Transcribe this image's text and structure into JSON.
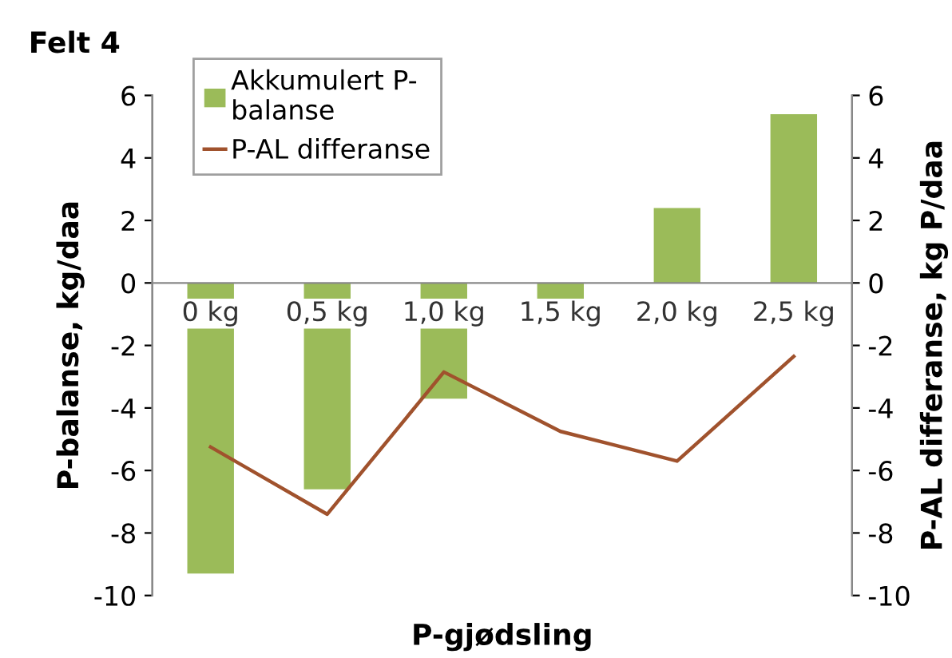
{
  "chart_data": {
    "type": "bar",
    "title": "Felt 4",
    "xlabel": "P-gjødsling",
    "ylabel": "P-balanse, kg/daa",
    "y2label": "P-AL differanse, kg P/daa",
    "categories": [
      "0 kg",
      "0,5 kg",
      "1,0 kg",
      "1,5 kg",
      "2,0 kg",
      "2,5 kg"
    ],
    "series": [
      {
        "name": "Akkumulert P-\nbalanse",
        "color": "#9bbb59",
        "values": [
          -9.3,
          -6.6,
          -3.7,
          -0.6,
          2.4,
          5.4
        ]
      },
      {
        "name": "P-AL differanse",
        "type": "line",
        "axis": "y2",
        "color": "#a0522d",
        "values": [
          -5.25,
          -7.4,
          -2.85,
          -4.75,
          -5.7,
          -2.35
        ]
      }
    ],
    "ylim": [
      -10,
      6
    ],
    "yticks": [
      -10,
      -8,
      -6,
      -4,
      -2,
      0,
      2,
      4,
      6
    ],
    "y2lim": [
      -10,
      6
    ],
    "y2ticks": [
      -10,
      -8,
      -6,
      -4,
      -2,
      0,
      2,
      4,
      6
    ],
    "grid": false,
    "legend": "top left",
    "marker": "none",
    "line_style": "solid"
  }
}
